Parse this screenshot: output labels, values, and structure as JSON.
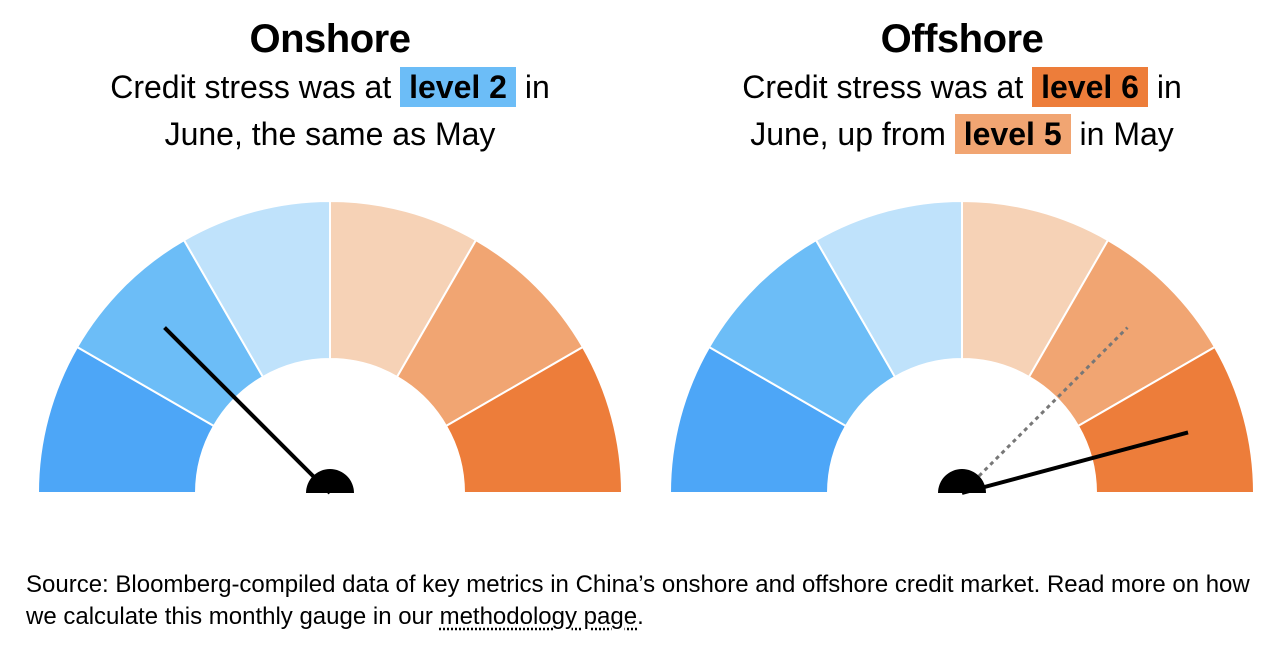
{
  "colors": {
    "segments": [
      "#4da6f7",
      "#6cbdf7",
      "#bfe2fb",
      "#f6d2b6",
      "#f1a572",
      "#ed7d3a"
    ],
    "needle": "#000000",
    "previous_needle": "#777777"
  },
  "chart_data": [
    {
      "type": "gauge",
      "title": "Onshore",
      "levels": [
        1,
        2,
        3,
        4,
        5,
        6
      ],
      "current_level": 2,
      "previous_level": 2,
      "subtitle": {
        "text1": "Credit stress was at ",
        "highlight1": "level 2",
        "text2": " in",
        "text3": "June, the same as May"
      }
    },
    {
      "type": "gauge",
      "title": "Offshore",
      "levels": [
        1,
        2,
        3,
        4,
        5,
        6
      ],
      "current_level": 6,
      "previous_level": 5,
      "subtitle": {
        "text1": "Credit stress was at ",
        "highlight1": "level 6",
        "text2": " in",
        "text3": "June, up from ",
        "highlight2": "level 5",
        "text4": " in May"
      }
    }
  ],
  "footer": {
    "source_text": "Source: Bloomberg-compiled data of key metrics in China’s onshore and offshore credit market. Read more on how we calculate this monthly gauge in our ",
    "link_text": "methodology page",
    "end_text": "."
  }
}
